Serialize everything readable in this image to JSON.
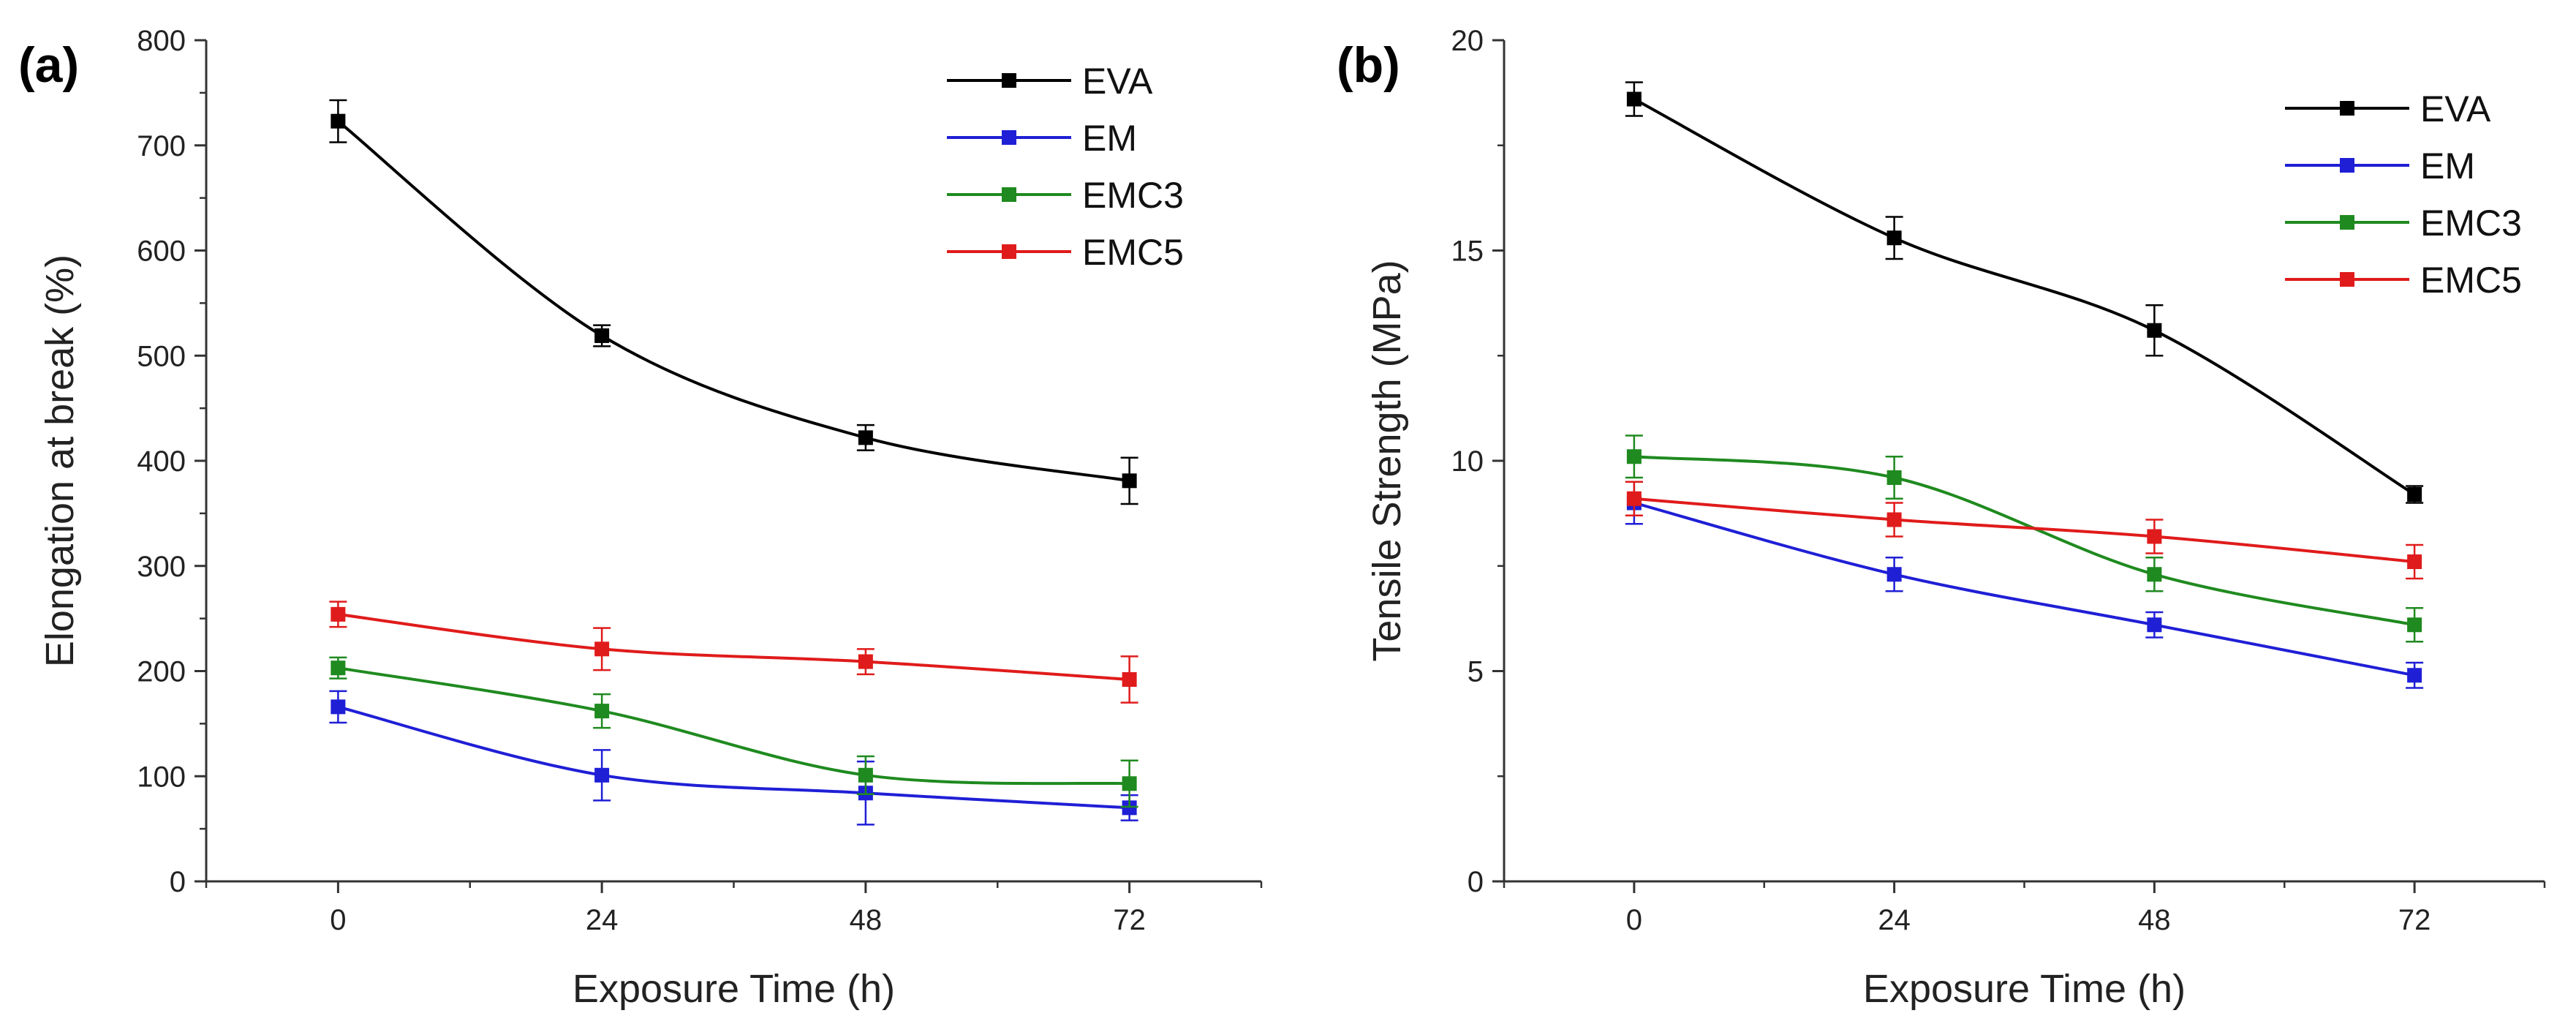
{
  "chart_data": [
    {
      "type": "line",
      "panel_label": "(a)",
      "title": "",
      "xlabel": "Exposure Time (h)",
      "ylabel": "Elongation at break (%)",
      "x": [
        0,
        24,
        48,
        72
      ],
      "x_ticks": [
        "0",
        "24",
        "48",
        "72"
      ],
      "xlim": [
        -12,
        84
      ],
      "ylim": [
        0,
        800
      ],
      "y_ticks": [
        "0",
        "100",
        "200",
        "300",
        "400",
        "500",
        "600",
        "700",
        "800"
      ],
      "grid": false,
      "legend_position": "top-right",
      "series": [
        {
          "name": "EVA",
          "color": "#000000",
          "values": [
            723,
            519,
            422,
            381
          ],
          "errors": [
            20,
            10,
            12,
            22
          ]
        },
        {
          "name": "EM",
          "color": "#1f1fd6",
          "values": [
            166,
            101,
            84,
            70
          ],
          "errors": [
            15,
            24,
            30,
            12
          ]
        },
        {
          "name": "EMC3",
          "color": "#1f8a1f",
          "values": [
            203,
            162,
            101,
            93
          ],
          "errors": [
            10,
            16,
            18,
            22
          ]
        },
        {
          "name": "EMC5",
          "color": "#e01b1b",
          "values": [
            254,
            221,
            209,
            192
          ],
          "errors": [
            12,
            20,
            12,
            22
          ]
        }
      ]
    },
    {
      "type": "line",
      "panel_label": "(b)",
      "title": "",
      "xlabel": "Exposure Time (h)",
      "ylabel": "Tensile Strength (MPa)",
      "x": [
        0,
        24,
        48,
        72
      ],
      "x_ticks": [
        "0",
        "24",
        "48",
        "72"
      ],
      "xlim": [
        -12,
        84
      ],
      "ylim": [
        0,
        20
      ],
      "y_ticks": [
        "0",
        "5",
        "10",
        "15",
        "20"
      ],
      "grid": false,
      "legend_position": "top-right",
      "series": [
        {
          "name": "EVA",
          "color": "#000000",
          "values": [
            18.6,
            15.3,
            13.1,
            9.2
          ],
          "errors": [
            0.4,
            0.5,
            0.6,
            0.2
          ]
        },
        {
          "name": "EM",
          "color": "#1f1fd6",
          "values": [
            9.0,
            7.3,
            6.1,
            4.9
          ],
          "errors": [
            0.5,
            0.4,
            0.3,
            0.3
          ]
        },
        {
          "name": "EMC3",
          "color": "#1f8a1f",
          "values": [
            10.1,
            9.6,
            7.3,
            6.1
          ],
          "errors": [
            0.5,
            0.5,
            0.4,
            0.4
          ]
        },
        {
          "name": "EMC5",
          "color": "#e01b1b",
          "values": [
            9.1,
            8.6,
            8.2,
            7.6
          ],
          "errors": [
            0.4,
            0.4,
            0.4,
            0.4
          ]
        }
      ]
    }
  ]
}
